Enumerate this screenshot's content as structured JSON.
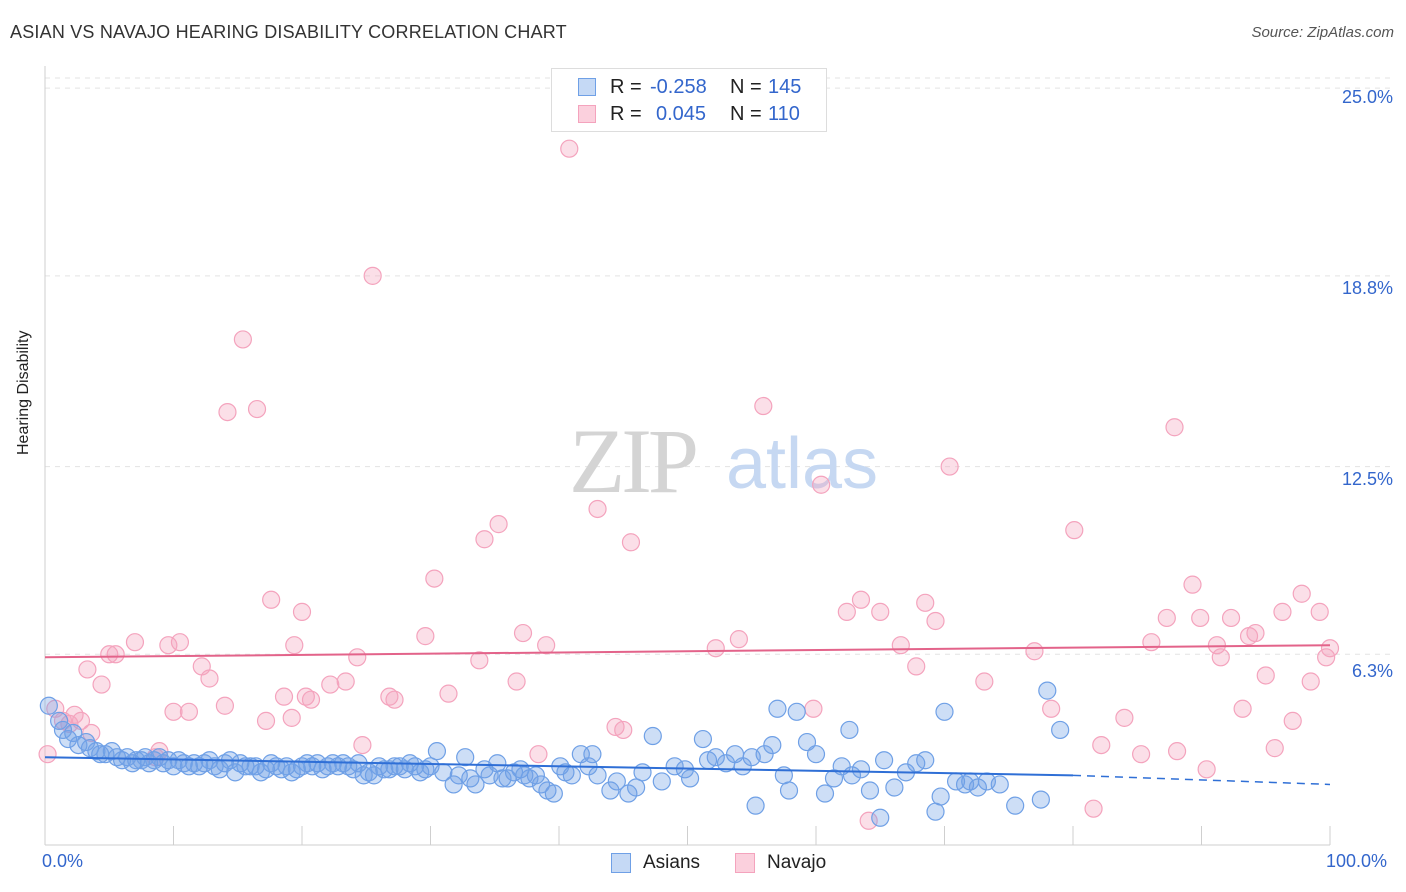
{
  "title": "ASIAN VS NAVAJO HEARING DISABILITY CORRELATION CHART",
  "source": "Source: ZipAtlas.com",
  "watermark": {
    "zip": "ZIP",
    "atlas": "atlas"
  },
  "legend": {
    "asians": {
      "r_label": "R =",
      "r_value": "-0.258",
      "n_label": "N =",
      "n_value": "145"
    },
    "navajo": {
      "r_label": "R =",
      "r_value": "0.045",
      "n_label": "N =",
      "n_value": "110"
    }
  },
  "bottom_legend": {
    "asians": "Asians",
    "navajo": "Navajo"
  },
  "x_tick_labels": {
    "left": "0.0%",
    "right": "100.0%"
  },
  "y_tick_labels": [
    "25.0%",
    "18.8%",
    "12.5%",
    "6.3%"
  ],
  "colors": {
    "asians": "#6fa0e6",
    "asians_line": "#2f6fd6",
    "navajo": "#f4a3bd",
    "navajo_line": "#e3638a",
    "accent": "#3366cc"
  },
  "chart_data": {
    "type": "scatter",
    "title": "ASIAN VS NAVAJO HEARING DISABILITY CORRELATION CHART",
    "xlabel": "",
    "ylabel": "Hearing Disability",
    "xlim": [
      0,
      100
    ],
    "ylim": [
      0,
      25.6
    ],
    "y_ticks": [
      6.3,
      12.5,
      18.8,
      25.0
    ],
    "grid": true,
    "legend_position": "top-center",
    "series": [
      {
        "name": "Asians",
        "trend": {
          "x": [
            0,
            80
          ],
          "y": [
            2.9,
            2.3
          ],
          "dashed_to": [
            100,
            2.0
          ]
        },
        "points": [
          [
            0.3,
            4.6
          ],
          [
            1.1,
            4.1
          ],
          [
            1.4,
            3.8
          ],
          [
            1.8,
            3.5
          ],
          [
            2.2,
            3.7
          ],
          [
            2.6,
            3.3
          ],
          [
            3.2,
            3.4
          ],
          [
            3.5,
            3.2
          ],
          [
            4.0,
            3.1
          ],
          [
            4.3,
            3.0
          ],
          [
            4.7,
            3.0
          ],
          [
            5.2,
            3.1
          ],
          [
            5.6,
            2.9
          ],
          [
            6.0,
            2.8
          ],
          [
            6.4,
            2.9
          ],
          [
            6.8,
            2.7
          ],
          [
            7.1,
            2.8
          ],
          [
            7.5,
            2.8
          ],
          [
            7.8,
            2.9
          ],
          [
            8.1,
            2.7
          ],
          [
            8.5,
            2.8
          ],
          [
            8.9,
            2.9
          ],
          [
            9.2,
            2.7
          ],
          [
            9.6,
            2.8
          ],
          [
            10.0,
            2.6
          ],
          [
            10.4,
            2.8
          ],
          [
            10.8,
            2.7
          ],
          [
            11.2,
            2.6
          ],
          [
            11.6,
            2.7
          ],
          [
            12.0,
            2.6
          ],
          [
            12.4,
            2.7
          ],
          [
            12.8,
            2.8
          ],
          [
            13.2,
            2.6
          ],
          [
            13.6,
            2.5
          ],
          [
            14.0,
            2.7
          ],
          [
            14.4,
            2.8
          ],
          [
            14.8,
            2.4
          ],
          [
            15.2,
            2.7
          ],
          [
            15.6,
            2.6
          ],
          [
            16.0,
            2.6
          ],
          [
            16.4,
            2.6
          ],
          [
            16.8,
            2.4
          ],
          [
            17.2,
            2.5
          ],
          [
            17.6,
            2.7
          ],
          [
            18.0,
            2.6
          ],
          [
            18.4,
            2.5
          ],
          [
            18.8,
            2.6
          ],
          [
            19.2,
            2.4
          ],
          [
            19.6,
            2.5
          ],
          [
            20.0,
            2.6
          ],
          [
            20.4,
            2.7
          ],
          [
            20.8,
            2.6
          ],
          [
            21.2,
            2.7
          ],
          [
            21.6,
            2.5
          ],
          [
            22.0,
            2.6
          ],
          [
            22.4,
            2.7
          ],
          [
            22.8,
            2.6
          ],
          [
            23.2,
            2.7
          ],
          [
            23.6,
            2.6
          ],
          [
            24.0,
            2.5
          ],
          [
            24.4,
            2.7
          ],
          [
            24.8,
            2.3
          ],
          [
            25.2,
            2.4
          ],
          [
            25.6,
            2.3
          ],
          [
            26.0,
            2.6
          ],
          [
            26.4,
            2.5
          ],
          [
            26.8,
            2.5
          ],
          [
            27.2,
            2.6
          ],
          [
            27.6,
            2.6
          ],
          [
            28.0,
            2.5
          ],
          [
            28.4,
            2.7
          ],
          [
            28.8,
            2.6
          ],
          [
            29.2,
            2.4
          ],
          [
            29.6,
            2.5
          ],
          [
            30.0,
            2.6
          ],
          [
            30.5,
            3.1
          ],
          [
            31.0,
            2.4
          ],
          [
            31.8,
            2.0
          ],
          [
            32.2,
            2.3
          ],
          [
            32.7,
            2.9
          ],
          [
            33.1,
            2.2
          ],
          [
            33.5,
            2.0
          ],
          [
            34.2,
            2.5
          ],
          [
            34.6,
            2.3
          ],
          [
            35.2,
            2.7
          ],
          [
            35.6,
            2.2
          ],
          [
            36.0,
            2.2
          ],
          [
            36.5,
            2.4
          ],
          [
            37.0,
            2.5
          ],
          [
            37.3,
            2.3
          ],
          [
            37.7,
            2.2
          ],
          [
            38.2,
            2.3
          ],
          [
            38.6,
            2.0
          ],
          [
            39.1,
            1.8
          ],
          [
            39.6,
            1.7
          ],
          [
            40.1,
            2.6
          ],
          [
            40.5,
            2.4
          ],
          [
            41.0,
            2.3
          ],
          [
            41.7,
            3.0
          ],
          [
            42.3,
            2.6
          ],
          [
            42.6,
            3.0
          ],
          [
            43.0,
            2.3
          ],
          [
            44.0,
            1.8
          ],
          [
            44.5,
            2.1
          ],
          [
            45.4,
            1.7
          ],
          [
            46.0,
            1.9
          ],
          [
            46.5,
            2.4
          ],
          [
            47.3,
            3.6
          ],
          [
            48.0,
            2.1
          ],
          [
            49.0,
            2.6
          ],
          [
            49.8,
            2.5
          ],
          [
            50.2,
            2.2
          ],
          [
            51.2,
            3.5
          ],
          [
            51.6,
            2.8
          ],
          [
            52.2,
            2.9
          ],
          [
            53.0,
            2.7
          ],
          [
            53.7,
            3.0
          ],
          [
            54.3,
            2.6
          ],
          [
            55.0,
            2.9
          ],
          [
            55.3,
            1.3
          ],
          [
            56.0,
            3.0
          ],
          [
            56.6,
            3.3
          ],
          [
            57.0,
            4.5
          ],
          [
            57.5,
            2.3
          ],
          [
            57.9,
            1.8
          ],
          [
            58.5,
            4.4
          ],
          [
            59.3,
            3.4
          ],
          [
            60.0,
            3.0
          ],
          [
            60.7,
            1.7
          ],
          [
            61.4,
            2.2
          ],
          [
            62.0,
            2.6
          ],
          [
            62.6,
            3.8
          ],
          [
            62.8,
            2.3
          ],
          [
            63.5,
            2.5
          ],
          [
            64.2,
            1.8
          ],
          [
            65.0,
            0.9
          ],
          [
            65.3,
            2.8
          ],
          [
            66.1,
            1.9
          ],
          [
            67.0,
            2.4
          ],
          [
            67.8,
            2.7
          ],
          [
            68.5,
            2.8
          ],
          [
            69.3,
            1.1
          ],
          [
            69.7,
            1.6
          ],
          [
            70.0,
            4.4
          ],
          [
            70.9,
            2.1
          ],
          [
            71.6,
            2.0
          ],
          [
            72.0,
            2.1
          ],
          [
            72.6,
            1.9
          ],
          [
            73.3,
            2.1
          ],
          [
            74.3,
            2.0
          ],
          [
            75.5,
            1.3
          ],
          [
            77.5,
            1.5
          ],
          [
            78.0,
            5.1
          ],
          [
            79.0,
            3.8
          ]
        ]
      },
      {
        "name": "Navajo",
        "trend": {
          "x": [
            0,
            100
          ],
          "y": [
            6.2,
            6.6
          ]
        },
        "points": [
          [
            0.2,
            3.0
          ],
          [
            0.8,
            4.5
          ],
          [
            1.4,
            4.1
          ],
          [
            1.9,
            4.0
          ],
          [
            2.3,
            4.3
          ],
          [
            2.8,
            4.1
          ],
          [
            3.3,
            5.8
          ],
          [
            4.4,
            5.3
          ],
          [
            5.0,
            6.3
          ],
          [
            5.5,
            6.3
          ],
          [
            7.0,
            6.7
          ],
          [
            8.6,
            2.9
          ],
          [
            9.6,
            6.6
          ],
          [
            10.0,
            4.4
          ],
          [
            10.5,
            6.7
          ],
          [
            11.2,
            4.4
          ],
          [
            12.2,
            5.9
          ],
          [
            12.8,
            5.5
          ],
          [
            14.0,
            4.6
          ],
          [
            14.2,
            14.3
          ],
          [
            15.4,
            16.7
          ],
          [
            17.2,
            4.1
          ],
          [
            17.6,
            8.1
          ],
          [
            18.6,
            4.9
          ],
          [
            19.2,
            4.2
          ],
          [
            19.4,
            6.6
          ],
          [
            20.0,
            7.7
          ],
          [
            20.3,
            4.9
          ],
          [
            20.7,
            4.8
          ],
          [
            22.2,
            5.3
          ],
          [
            23.4,
            5.4
          ],
          [
            24.7,
            3.3
          ],
          [
            25.5,
            18.8
          ],
          [
            26.8,
            4.9
          ],
          [
            27.2,
            4.8
          ],
          [
            29.6,
            6.9
          ],
          [
            30.3,
            8.8
          ],
          [
            31.4,
            5.0
          ],
          [
            33.8,
            6.1
          ],
          [
            34.2,
            10.1
          ],
          [
            35.3,
            10.6
          ],
          [
            36.7,
            5.4
          ],
          [
            37.2,
            7.0
          ],
          [
            39.0,
            6.6
          ],
          [
            40.8,
            23.0
          ],
          [
            43.0,
            11.1
          ],
          [
            44.4,
            3.9
          ],
          [
            45.0,
            3.8
          ],
          [
            45.6,
            10.0
          ],
          [
            52.2,
            6.5
          ],
          [
            54.0,
            6.8
          ],
          [
            55.9,
            14.5
          ],
          [
            59.8,
            4.5
          ],
          [
            60.4,
            11.9
          ],
          [
            62.4,
            7.7
          ],
          [
            63.5,
            8.1
          ],
          [
            65.0,
            7.7
          ],
          [
            66.6,
            6.6
          ],
          [
            67.8,
            5.9
          ],
          [
            68.5,
            8.0
          ],
          [
            69.3,
            7.4
          ],
          [
            70.4,
            12.5
          ],
          [
            73.1,
            5.4
          ],
          [
            77.0,
            6.4
          ],
          [
            78.3,
            4.5
          ],
          [
            80.1,
            10.4
          ],
          [
            81.6,
            1.2
          ],
          [
            82.2,
            3.3
          ],
          [
            84.0,
            4.2
          ],
          [
            85.3,
            3.0
          ],
          [
            86.1,
            6.7
          ],
          [
            87.3,
            7.5
          ],
          [
            87.9,
            13.8
          ],
          [
            88.1,
            3.1
          ],
          [
            89.3,
            8.6
          ],
          [
            89.9,
            7.5
          ],
          [
            90.4,
            2.5
          ],
          [
            91.2,
            6.6
          ],
          [
            91.5,
            6.2
          ],
          [
            92.3,
            7.5
          ],
          [
            93.2,
            4.5
          ],
          [
            93.7,
            6.9
          ],
          [
            94.2,
            7.0
          ],
          [
            95.0,
            5.6
          ],
          [
            95.7,
            3.2
          ],
          [
            96.3,
            7.7
          ],
          [
            97.1,
            4.1
          ],
          [
            97.8,
            8.3
          ],
          [
            98.5,
            5.4
          ],
          [
            99.2,
            7.7
          ],
          [
            99.7,
            6.2
          ],
          [
            100.0,
            6.5
          ],
          [
            64.1,
            0.8
          ],
          [
            38.4,
            3.0
          ],
          [
            24.3,
            6.2
          ],
          [
            16.5,
            14.4
          ],
          [
            8.9,
            3.1
          ],
          [
            3.6,
            3.7
          ]
        ]
      }
    ]
  }
}
